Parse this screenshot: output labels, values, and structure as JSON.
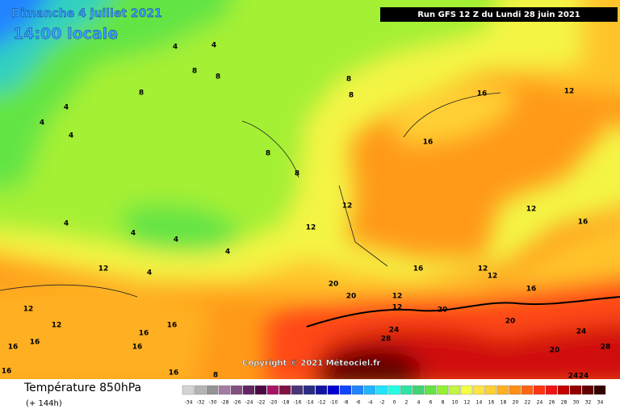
{
  "header": {
    "date": "Dimanche 4 juillet 2021",
    "time": "14:00 locale",
    "run": "Run GFS 12 Z du Lundi 28 juin 2021"
  },
  "copyright": "Copyright © 2021 Méteociel.fr",
  "footer": {
    "title": "Température 850hPa",
    "lead": "(+ 144h)"
  },
  "isotherm_labels": [
    4,
    4,
    8,
    8,
    8,
    4,
    4,
    8,
    8,
    4,
    4,
    4,
    4,
    4,
    4,
    12,
    12,
    16,
    16,
    16,
    16,
    16,
    16,
    8,
    8,
    8,
    12,
    12,
    12,
    12,
    16,
    16,
    16,
    20,
    20,
    20,
    20,
    24,
    28,
    24,
    28,
    20,
    24,
    24,
    12,
    12,
    12,
    12,
    12,
    16,
    16,
    16
  ],
  "scale": [
    {
      "value": -34,
      "color": "#d4d4d4"
    },
    {
      "value": -32,
      "color": "#b4b4b4"
    },
    {
      "value": -30,
      "color": "#949494"
    },
    {
      "value": -28,
      "color": "#a47ca4"
    },
    {
      "value": -26,
      "color": "#845084"
    },
    {
      "value": -24,
      "color": "#642464"
    },
    {
      "value": -22,
      "color": "#4c0a44"
    },
    {
      "value": -20,
      "color": "#a81464"
    },
    {
      "value": -18,
      "color": "#801444"
    },
    {
      "value": -16,
      "color": "#4c3478"
    },
    {
      "value": -14,
      "color": "#2c2c84"
    },
    {
      "value": -12,
      "color": "#1414a4"
    },
    {
      "value": -10,
      "color": "#0000d4"
    },
    {
      "value": -8,
      "color": "#1044ff"
    },
    {
      "value": -6,
      "color": "#2084ff"
    },
    {
      "value": -4,
      "color": "#20b4ff"
    },
    {
      "value": -2,
      "color": "#20e4ff"
    },
    {
      "value": 0,
      "color": "#24ffe4"
    },
    {
      "value": 2,
      "color": "#30e4a4"
    },
    {
      "value": 4,
      "color": "#40d474"
    },
    {
      "value": 6,
      "color": "#64e444"
    },
    {
      "value": 8,
      "color": "#94f034"
    },
    {
      "value": 10,
      "color": "#c4f444"
    },
    {
      "value": 12,
      "color": "#f4ff44"
    },
    {
      "value": 14,
      "color": "#ffe444"
    },
    {
      "value": 16,
      "color": "#ffd034"
    },
    {
      "value": 18,
      "color": "#ffb024"
    },
    {
      "value": 20,
      "color": "#ff9014"
    },
    {
      "value": 22,
      "color": "#ff6414"
    },
    {
      "value": 24,
      "color": "#ff3414"
    },
    {
      "value": 26,
      "color": "#f01414"
    },
    {
      "value": 28,
      "color": "#c40000"
    },
    {
      "value": 30,
      "color": "#940000"
    },
    {
      "value": 32,
      "color": "#640000"
    },
    {
      "value": 34,
      "color": "#340000"
    }
  ]
}
